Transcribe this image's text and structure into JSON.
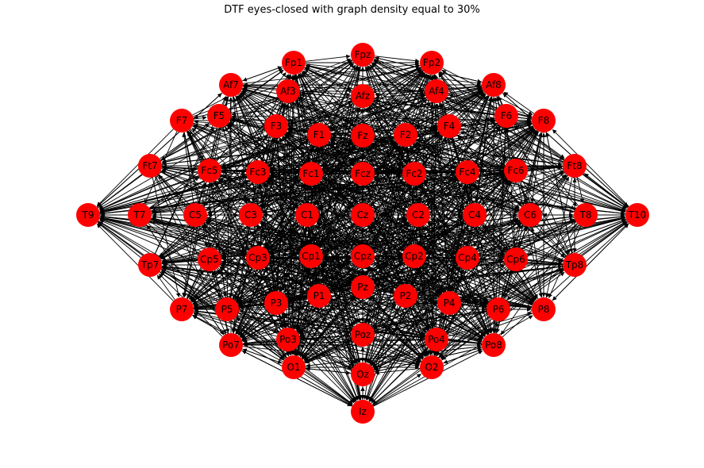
{
  "title": "DTF eyes-closed with graph density equal to 30%",
  "node_color": "#ff0000",
  "edge_color": "#000000",
  "chart_data": {
    "type": "network",
    "title": "DTF eyes-closed with graph density equal to 30%",
    "nodes": [
      "Fpz",
      "Fp1",
      "Fp2",
      "Af7",
      "Af3",
      "Afz",
      "Af4",
      "Af8",
      "F7",
      "F5",
      "F3",
      "F1",
      "Fz",
      "F2",
      "F4",
      "F6",
      "F8",
      "Ft7",
      "Fc5",
      "Fc3",
      "Fc1",
      "Fcz",
      "Fc2",
      "Fc4",
      "Fc6",
      "Ft8",
      "T9",
      "T7",
      "C5",
      "C3",
      "C1",
      "Cz",
      "C2",
      "C4",
      "C6",
      "T8",
      "T10",
      "Tp7",
      "Cp5",
      "Cp3",
      "Cp1",
      "Cpz",
      "Cp2",
      "Cp4",
      "Cp6",
      "Tp8",
      "Pz",
      "P7",
      "P5",
      "P3",
      "P1",
      "P2",
      "P4",
      "P6",
      "P8",
      "Po7",
      "Po3",
      "Poz",
      "Po4",
      "Po8",
      "O1",
      "Oz",
      "O2",
      "Iz"
    ],
    "graph_density": "30%"
  }
}
